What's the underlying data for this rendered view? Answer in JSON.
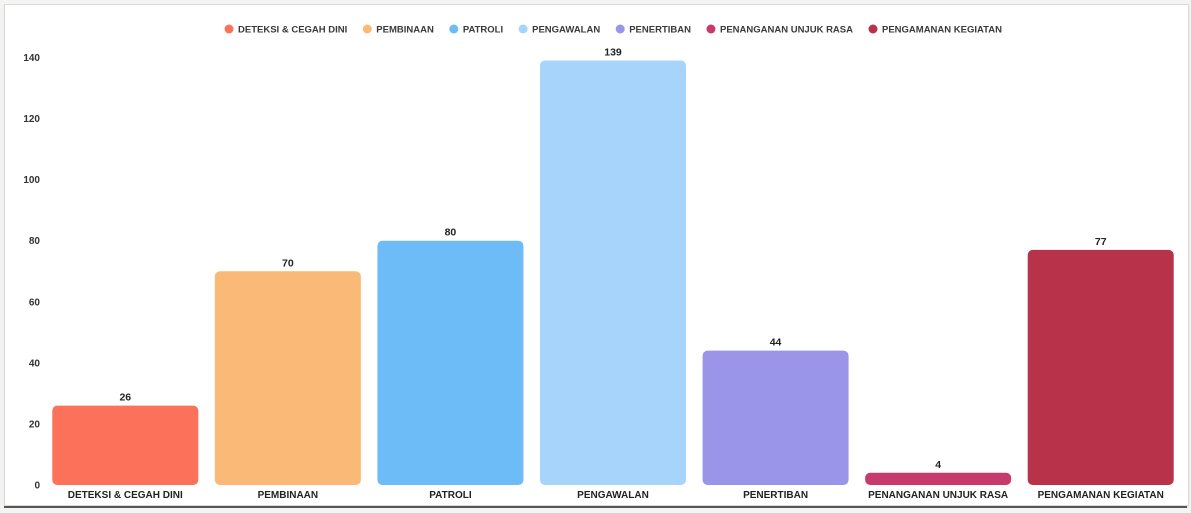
{
  "chart_data": {
    "type": "bar",
    "categories": [
      "DETEKSI & CEGAH DINI",
      "PEMBINAAN",
      "PATROLI",
      "PENGAWALAN",
      "PENERTIBAN",
      "PENANGANAN UNJUK RASA",
      "PENGAMANAN KEGIATAN"
    ],
    "values": [
      26,
      70,
      80,
      139,
      44,
      4,
      77
    ],
    "colors": [
      "#fb7159",
      "#fbb978",
      "#6ebcf7",
      "#a6d4fa",
      "#9a95e8",
      "#c73a6c",
      "#b8334a"
    ],
    "legend": {
      "position": "top-center",
      "entries": [
        "DETEKSI & CEGAH DINI",
        "PEMBINAAN",
        "PATROLI",
        "PENGAWALAN",
        "PENERTIBAN",
        "PENANGANAN UNJUK RASA",
        "PENGAMANAN KEGIATAN"
      ]
    },
    "yticks": [
      "0",
      "20",
      "40",
      "60",
      "80",
      "100",
      "120",
      "140"
    ],
    "ylim": [
      0,
      146
    ],
    "grid": false,
    "data_labels": true,
    "title": "",
    "xlabel": "",
    "ylabel": ""
  }
}
